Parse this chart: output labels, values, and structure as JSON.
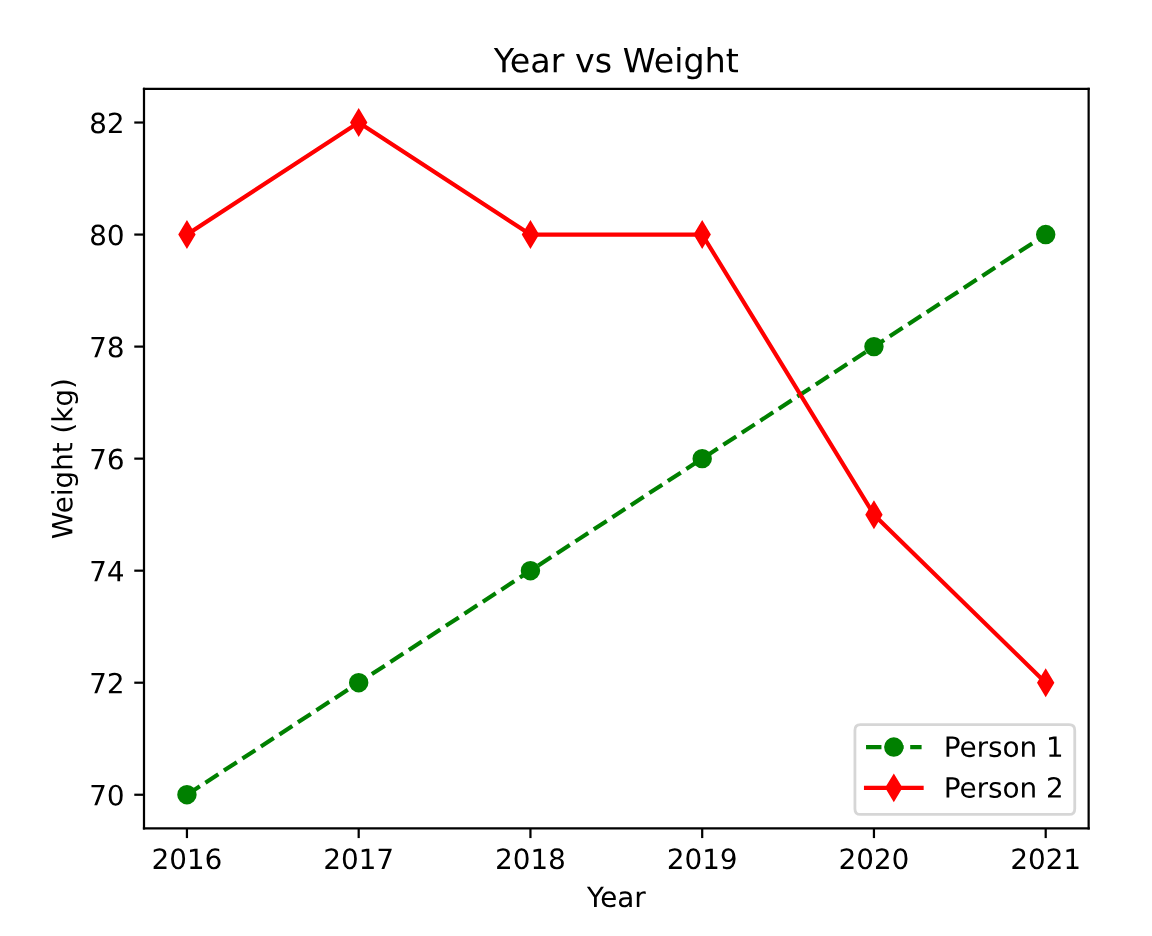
{
  "chart_data": {
    "type": "line",
    "title": "Year vs Weight",
    "xlabel": "Year",
    "ylabel": "Weight (kg)",
    "x": [
      2016,
      2017,
      2018,
      2019,
      2020,
      2021
    ],
    "series": [
      {
        "name": "Person 1",
        "color": "#008000",
        "values": [
          70,
          72,
          74,
          76,
          78,
          80
        ],
        "marker": "circle",
        "line_style": "dashed"
      },
      {
        "name": "Person 2",
        "color": "#ff0000",
        "values": [
          80,
          82,
          80,
          80,
          75,
          72
        ],
        "marker": "diamond",
        "line_style": "solid"
      }
    ],
    "xlim": [
      2015.75,
      2021.25
    ],
    "xticks": [
      2016,
      2017,
      2018,
      2019,
      2020,
      2021
    ],
    "ylim": [
      69.4,
      82.6
    ],
    "yticks": [
      70,
      72,
      74,
      76,
      78,
      80,
      82
    ],
    "legend": "bottom right",
    "grid": false
  }
}
